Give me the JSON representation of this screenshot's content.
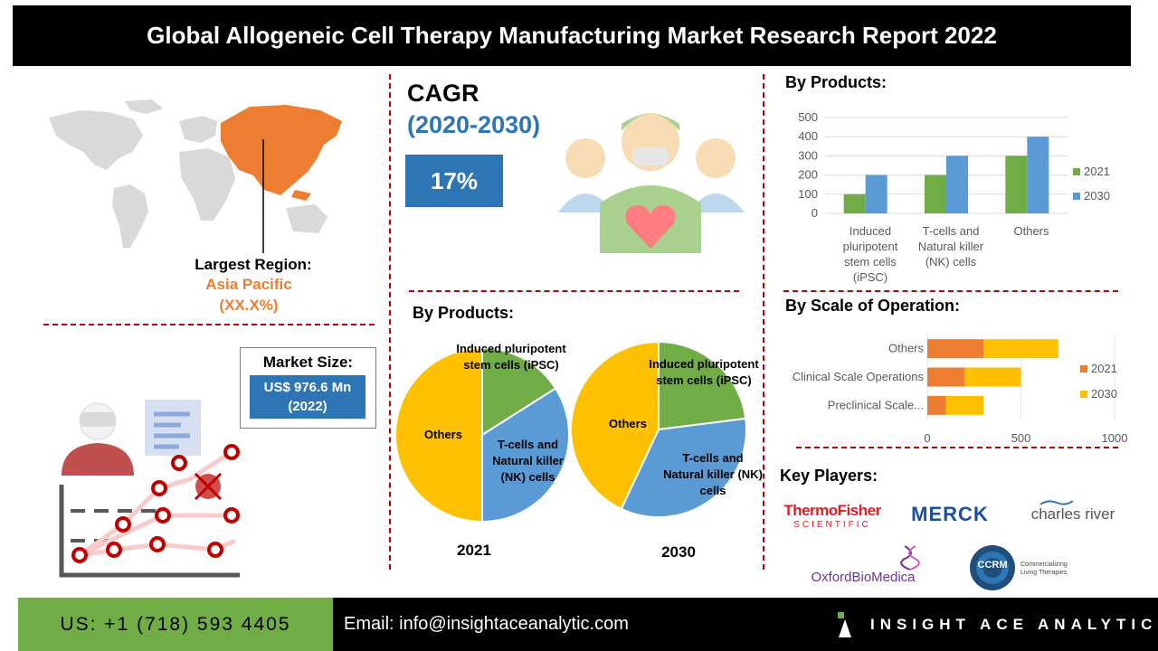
{
  "header": {
    "title": "Global Allogeneic Cell Therapy Manufacturing Market Research Report 2022"
  },
  "region": {
    "label": "Largest Region:",
    "name": "Asia Pacific",
    "share": "(XX.X%)",
    "accent": "#ed7d31"
  },
  "cagr": {
    "label": "CAGR",
    "period": "(2020-2030)",
    "value": "17%"
  },
  "market_size": {
    "label": "Market Size:",
    "value": "US$ 976.6 Mn",
    "year": "(2022)"
  },
  "by_products_title": "By Products:",
  "by_scale_title": "By Scale of Operation:",
  "key_players_title": "Key Players:",
  "key_players": [
    {
      "name": "ThermoFisher",
      "sub": "SCIENTIFIC"
    },
    {
      "name": "MERCK"
    },
    {
      "name": "charles river"
    },
    {
      "name": "OxfordBioMedica"
    },
    {
      "name": "CCRM",
      "sub": "Commercializing Living Therapies"
    }
  ],
  "footer": {
    "phone": "US: +1 (718) 593 4405",
    "email": "Email: info@insightaceanalytic.com",
    "brand": "INSIGHT ACE ANALYTIC"
  },
  "colors": {
    "blue": "#2e75b6",
    "light_blue": "#5b9bd5",
    "green": "#70ad47",
    "orange": "#ed7d31",
    "yellow": "#ffc000",
    "red": "#c00000"
  },
  "chart_data": [
    {
      "type": "bar",
      "title": "By Products:",
      "categories": [
        "Induced pluripotent stem cells (iPSC)",
        "T-cells and Natural killer (NK) cells",
        "Others"
      ],
      "series": [
        {
          "name": "2021",
          "values": [
            100,
            200,
            300
          ],
          "color": "#70ad47"
        },
        {
          "name": "2030",
          "values": [
            200,
            300,
            400
          ],
          "color": "#5b9bd5"
        }
      ],
      "ylim": [
        0,
        500
      ],
      "yticks": [
        "0",
        "100",
        "200",
        "300",
        "400",
        "500"
      ],
      "grid": true,
      "legend": "right"
    },
    {
      "type": "bar",
      "orientation": "horizontal",
      "stacked": true,
      "title": "By Scale of Operation:",
      "categories": [
        "Others",
        "Clinical Scale Operations",
        "Preclinical Scale..."
      ],
      "series": [
        {
          "name": "2021",
          "values": [
            300,
            200,
            100
          ],
          "color": "#ed7d31"
        },
        {
          "name": "2030",
          "values": [
            400,
            300,
            200
          ],
          "color": "#ffc000"
        }
      ],
      "xlim": [
        0,
        1000
      ],
      "xticks": [
        "0",
        "500",
        "1000"
      ],
      "legend": "right"
    },
    {
      "type": "pie",
      "title": "By Products:",
      "xlabel": "2021",
      "slices": [
        {
          "label": "Induced pluripotent stem cells (iPSC)",
          "value": 16,
          "color": "#70ad47"
        },
        {
          "label": "T-cells and Natural killer (NK) cells",
          "value": 34,
          "color": "#5b9bd5"
        },
        {
          "label": "Others",
          "value": 50,
          "color": "#ffc000"
        }
      ]
    },
    {
      "type": "pie",
      "xlabel": "2030",
      "slices": [
        {
          "label": "Induced pluripotent stem cells (iPSC)",
          "value": 23,
          "color": "#70ad47"
        },
        {
          "label": "T-cells and Natural killer (NK) cells",
          "value": 34,
          "color": "#5b9bd5"
        },
        {
          "label": "Others",
          "value": 43,
          "color": "#ffc000"
        }
      ]
    }
  ]
}
